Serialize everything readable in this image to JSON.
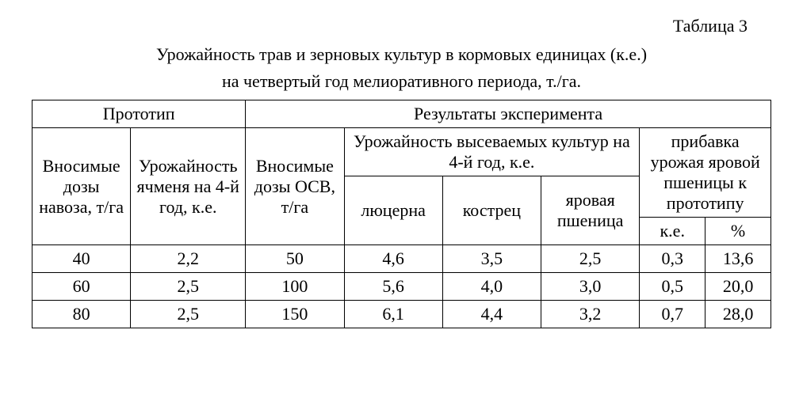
{
  "table_label": "Таблица 3",
  "title1": "Урожайность трав и зерновых культур  в кормовых единицах (к.е.)",
  "title2": "на четвертый год мелиоративного периода, т./га.",
  "head": {
    "prototype": "Прототип",
    "results": "Результаты эксперимента",
    "manure": "Вносимые дозы навоза, т/га",
    "barley": "Урожайность ячменя на 4-й год, к.е.",
    "osv": "Вносимые дозы ОСВ, т/га",
    "yield4": "Урожайность высеваемых культур на 4-й год, к.е.",
    "gain": "прибавка урожая яровой пшеницы к прототипу",
    "lucerne": "люцерна",
    "brome": "кострец",
    "wheat": "яровая пшеница",
    "ke": "к.е.",
    "pct": "%"
  },
  "rows": [
    {
      "c1": "40",
      "c2": "2,2",
      "c3": "50",
      "c4": "4,6",
      "c5": "3,5",
      "c6": "2,5",
      "c7": "0,3",
      "c8": "13,6"
    },
    {
      "c1": "60",
      "c2": "2,5",
      "c3": "100",
      "c4": "5,6",
      "c5": "4,0",
      "c6": "3,0",
      "c7": "0,5",
      "c8": "20,0"
    },
    {
      "c1": "80",
      "c2": "2,5",
      "c3": "150",
      "c4": "6,1",
      "c5": "4,4",
      "c6": "3,2",
      "c7": "0,7",
      "c8": "28,0"
    }
  ]
}
